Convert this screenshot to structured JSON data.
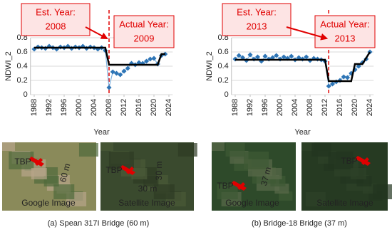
{
  "chart_data": [
    {
      "type": "line",
      "xlabel": "Year",
      "ylabel": "NDWI_2",
      "xlim": [
        1987,
        2025
      ],
      "ylim": [
        0,
        0.8
      ],
      "xticks": [
        1988,
        1992,
        1996,
        2000,
        2004,
        2008,
        2012,
        2016,
        2020,
        2024
      ],
      "yticks": [
        0,
        0.2,
        0.4,
        0.6,
        0.8
      ],
      "grid": true,
      "series": [
        {
          "color": "#2e75b6",
          "marker": "diamond",
          "x": [
            1988,
            1989,
            1990,
            1991,
            1992,
            1993,
            1994,
            1995,
            1996,
            1997,
            1998,
            1999,
            2000,
            2001,
            2002,
            2003,
            2004,
            2005,
            2006,
            2007,
            2008,
            2009,
            2010,
            2011,
            2012,
            2013,
            2014,
            2015,
            2016,
            2017,
            2018,
            2019,
            2020,
            2021,
            2022,
            2023
          ],
          "values": [
            0.64,
            0.67,
            0.66,
            0.65,
            0.68,
            0.66,
            0.64,
            0.67,
            0.66,
            0.68,
            0.65,
            0.67,
            0.66,
            0.68,
            0.65,
            0.67,
            0.66,
            0.64,
            0.66,
            0.62,
            0.1,
            0.32,
            0.3,
            0.28,
            0.33,
            0.37,
            0.44,
            0.42,
            0.45,
            0.44,
            0.47,
            0.5,
            0.51,
            0.43,
            0.55,
            0.57
          ]
        },
        {
          "color": "#000000",
          "marker": "none",
          "x": [
            1988,
            2007,
            2008,
            2021,
            2022,
            2023
          ],
          "values": [
            0.66,
            0.66,
            0.42,
            0.42,
            0.57,
            0.57
          ]
        }
      ],
      "est_label": "Est. Year:",
      "est_year": 2008,
      "actual_label": "Actual Year:",
      "actual_year": 2009,
      "images": [
        {
          "title": "Google Image",
          "texts": [
            "TBP",
            "60 m"
          ]
        },
        {
          "title": "Satellite Image",
          "texts": [
            "TBP",
            "30 m",
            "30 m"
          ]
        }
      ],
      "caption": "(a) Spean 317I Bridge (60 m)"
    },
    {
      "type": "line",
      "xlabel": "Year",
      "ylabel": "NDWI_2",
      "xlim": [
        1987,
        2025
      ],
      "ylim": [
        0,
        0.8
      ],
      "xticks": [
        1988,
        1992,
        1996,
        2000,
        2004,
        2008,
        2012,
        2016,
        2020,
        2024
      ],
      "yticks": [
        0,
        0.2,
        0.4,
        0.6,
        0.8
      ],
      "grid": true,
      "series": [
        {
          "color": "#2e75b6",
          "marker": "diamond",
          "x": [
            1988,
            1989,
            1990,
            1991,
            1992,
            1993,
            1994,
            1995,
            1996,
            1997,
            1998,
            1999,
            2000,
            2001,
            2002,
            2003,
            2004,
            2005,
            2006,
            2007,
            2008,
            2009,
            2010,
            2011,
            2012,
            2013,
            2014,
            2015,
            2016,
            2017,
            2018,
            2019,
            2020,
            2021,
            2022,
            2023,
            2024
          ],
          "values": [
            0.5,
            0.55,
            0.52,
            0.48,
            0.56,
            0.5,
            0.53,
            0.47,
            0.54,
            0.5,
            0.52,
            0.55,
            0.5,
            0.53,
            0.51,
            0.54,
            0.49,
            0.52,
            0.5,
            0.53,
            0.48,
            0.51,
            0.5,
            0.49,
            0.47,
            0.12,
            0.15,
            0.18,
            0.2,
            0.25,
            0.24,
            0.3,
            0.35,
            0.4,
            0.45,
            0.5,
            0.6
          ]
        },
        {
          "color": "#000000",
          "marker": "none",
          "x": [
            1988,
            2012,
            2013,
            2019,
            2020,
            2022,
            2024
          ],
          "values": [
            0.49,
            0.49,
            0.19,
            0.19,
            0.43,
            0.43,
            0.6
          ]
        }
      ],
      "est_label": "Est. Year:",
      "est_year": 2013,
      "actual_label": "Actual Year:",
      "actual_year": 2013,
      "images": [
        {
          "title": "Google Image",
          "texts": [
            "TBP",
            "37 m"
          ]
        },
        {
          "title": "Satellite Image",
          "texts": [
            "TBP"
          ]
        }
      ],
      "caption": "(b) Bridge-18 Bridge (37 m)"
    }
  ]
}
